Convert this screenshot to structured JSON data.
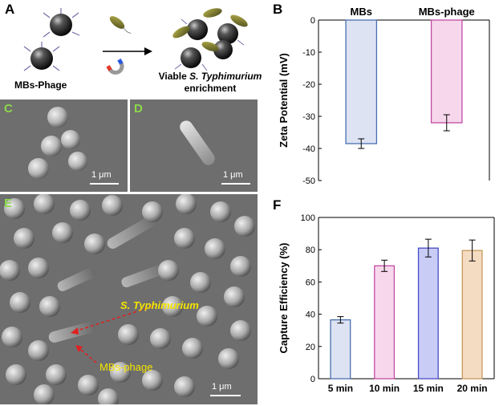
{
  "panels": {
    "A": {
      "letter": "A",
      "left_label": "MBs-Phage",
      "right_label_prefix": "Viable ",
      "right_label_italic": "S. Typhimurium",
      "right_label_line2": "enrichment"
    },
    "B": {
      "letter": "B"
    },
    "C": {
      "letter": "C",
      "scale": "1 μm"
    },
    "D": {
      "letter": "D",
      "scale": "1 μm"
    },
    "E": {
      "letter": "E",
      "scale": "1 μm",
      "label_bacteria": "S. Typhimurium",
      "label_mbs": "MBs-phage"
    },
    "F": {
      "letter": "F"
    }
  },
  "colors": {
    "em_bg": "#6e6e6e",
    "em_letter": "#8cd84a",
    "label_yellow": "#f5e400",
    "arrow_red": "#e02020"
  },
  "chart_data": [
    {
      "id": "B",
      "type": "bar",
      "categories": [
        "MBs",
        "MBs-phage"
      ],
      "values": [
        -38.5,
        -32.0
      ],
      "errors": [
        1.5,
        2.5
      ],
      "ylabel": "Zeta Potential (mV)",
      "ylim": [
        -50,
        0
      ],
      "yticks": [
        "0",
        "-10",
        "-20",
        "-30",
        "-40",
        "-50"
      ],
      "category_labels_position": "top",
      "grid": false,
      "bar_fill": [
        "#dde3f3",
        "#f6d7ec"
      ],
      "bar_stroke": [
        "#4a6fb0",
        "#c24aa4"
      ]
    },
    {
      "id": "F",
      "type": "bar",
      "categories": [
        "5 min",
        "10 min",
        "15 min",
        "20 min"
      ],
      "values": [
        36.5,
        70.0,
        81.0,
        79.5
      ],
      "errors": [
        2.0,
        3.5,
        5.5,
        6.5
      ],
      "ylabel": "Capture Efficiency (%)",
      "ylim": [
        0,
        100
      ],
      "yticks": [
        "0",
        "20",
        "40",
        "60",
        "80",
        "100"
      ],
      "grid": false,
      "bar_fill": [
        "#dde3f3",
        "#f6d7ec",
        "#c9cdf6",
        "#f4dcc2"
      ],
      "bar_stroke": [
        "#4a6fb0",
        "#c24aa4",
        "#4a4ac8",
        "#c8985c"
      ]
    }
  ]
}
